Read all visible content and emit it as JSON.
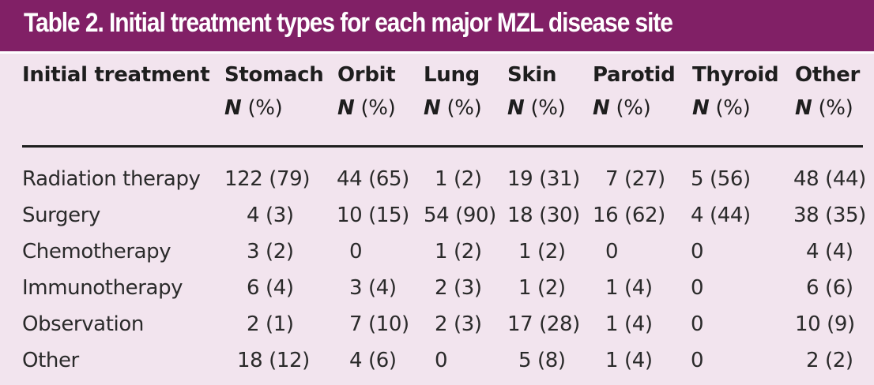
{
  "title": "Table 2. Initial treatment types for each major MZL disease site",
  "header": {
    "first_col": "Initial treatment",
    "n_label": "N",
    "pct_label": "(%)",
    "sites": [
      "Stomach",
      "Orbit",
      "Lung",
      "Skin",
      "Parotid",
      "Thyroid",
      "Other"
    ]
  },
  "rows": [
    {
      "label": "Radiation therapy",
      "cells": [
        "122 (79)",
        "44 (65)",
        "1 (2)",
        "19 (31)",
        "7 (27)",
        "5 (56)",
        "48 (44)"
      ]
    },
    {
      "label": "Surgery",
      "cells": [
        "4 (3)",
        "10 (15)",
        "54 (90)",
        "18 (30)",
        "16 (62)",
        "4 (44)",
        "38 (35)"
      ]
    },
    {
      "label": "Chemotherapy",
      "cells": [
        "3 (2)",
        "0",
        "1 (2)",
        "1 (2)",
        "0",
        "0",
        "4 (4)"
      ]
    },
    {
      "label": "Immunotherapy",
      "cells": [
        "6 (4)",
        "3 (4)",
        "2 (3)",
        "1 (2)",
        "1 (4)",
        "0",
        "6 (6)"
      ]
    },
    {
      "label": "Observation",
      "cells": [
        "2 (1)",
        "7 (10)",
        "2 (3)",
        "17 (28)",
        "1 (4)",
        "0",
        "10 (9)"
      ]
    },
    {
      "label": "Other",
      "cells": [
        "18 (12)",
        "4 (6)",
        "0",
        "5 (8)",
        "1 (4)",
        "0",
        "2 (2)"
      ]
    }
  ]
}
